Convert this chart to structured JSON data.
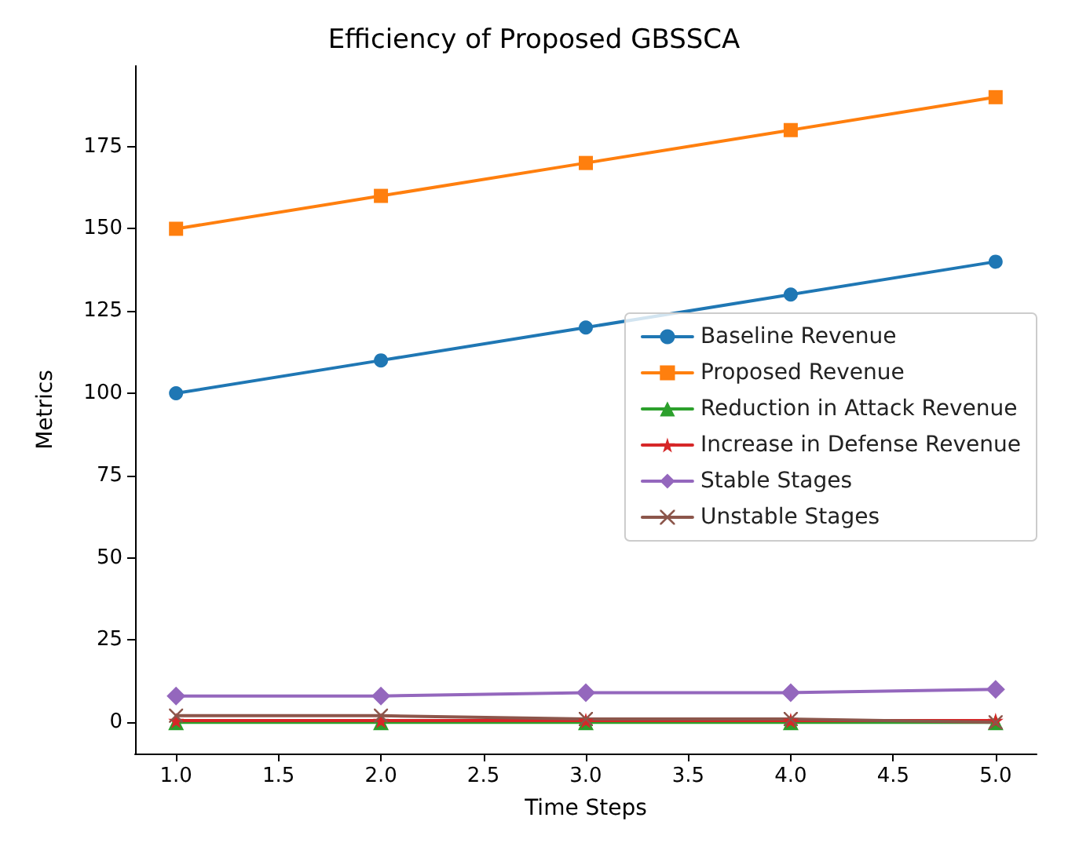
{
  "chart_data": {
    "type": "line",
    "title": "Efficiency of Proposed GBSSCA",
    "xlabel": "Time Steps",
    "ylabel": "Metrics",
    "x": [
      1,
      2,
      3,
      4,
      5
    ],
    "series": [
      {
        "name": "Baseline Revenue",
        "color": "#1f77b4",
        "marker": "circle",
        "values": [
          100,
          110,
          120,
          130,
          140
        ]
      },
      {
        "name": "Proposed Revenue",
        "color": "#ff7f0e",
        "marker": "square",
        "values": [
          150,
          160,
          170,
          180,
          190
        ]
      },
      {
        "name": "Reduction in Attack Revenue",
        "color": "#2ca02c",
        "marker": "triangle",
        "values": [
          0,
          0,
          0,
          0,
          0
        ]
      },
      {
        "name": "Increase in Defense Revenue",
        "color": "#d62728",
        "marker": "star",
        "values": [
          0.5,
          0.5,
          0.5,
          0.5,
          0.5
        ]
      },
      {
        "name": "Stable Stages",
        "color": "#9467bd",
        "marker": "diamond",
        "values": [
          8,
          8,
          9,
          9,
          10
        ]
      },
      {
        "name": "Unstable Stages",
        "color": "#8c564b",
        "marker": "cross",
        "values": [
          2,
          2,
          1,
          1,
          0
        ]
      }
    ],
    "xlim": [
      0.8,
      5.2
    ],
    "xticks": [
      {
        "value": 1,
        "label": "1.0"
      },
      1.5,
      {
        "value": 2,
        "label": "2.0"
      },
      2.5,
      {
        "value": 3,
        "label": "3.0"
      },
      3.5,
      {
        "value": 4,
        "label": "4.0"
      },
      4.5,
      {
        "value": 5,
        "label": "5.0"
      }
    ],
    "ylim": [
      -9.5,
      199.5
    ],
    "yticks": [
      0,
      25,
      50,
      75,
      100,
      125,
      150,
      175
    ],
    "grid": false,
    "legend": "right",
    "line_style": "solid"
  }
}
